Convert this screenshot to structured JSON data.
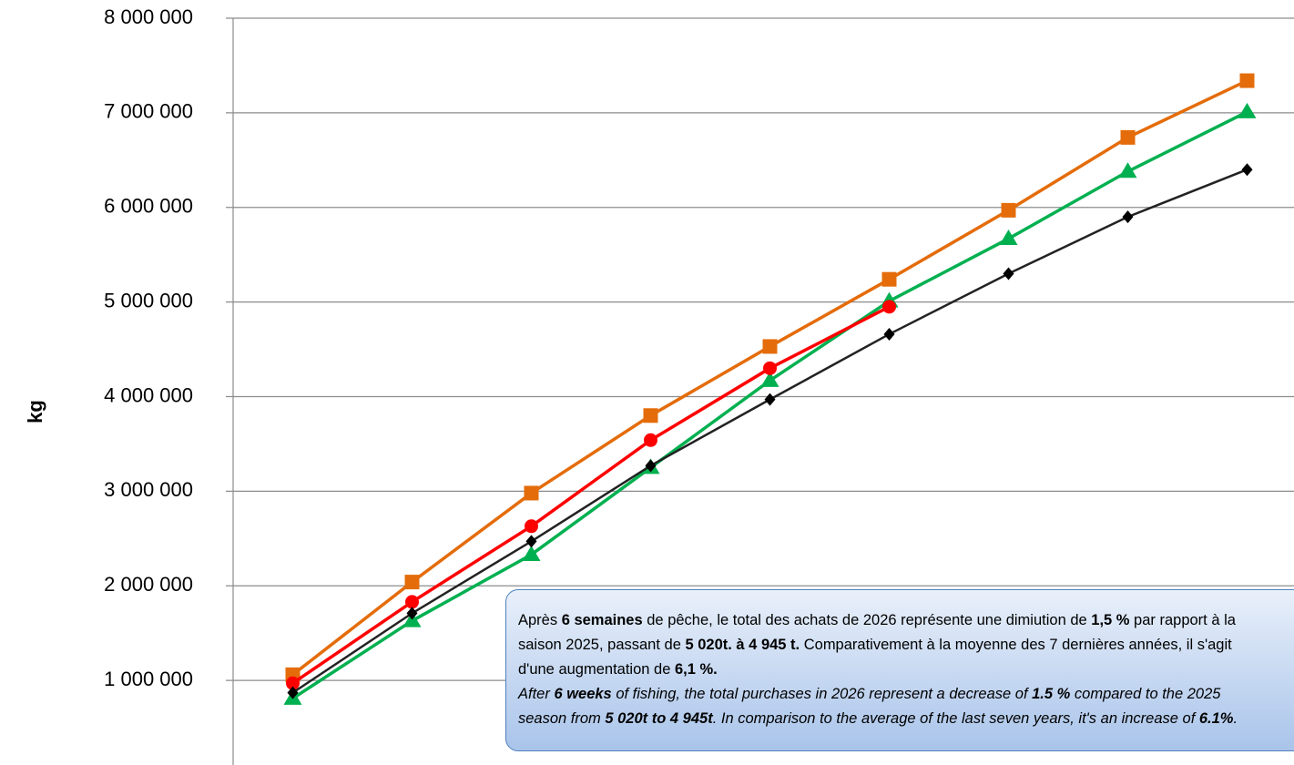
{
  "chart_data": {
    "type": "line",
    "y_label": "kg",
    "categories": [
      null,
      null,
      null,
      null,
      null,
      null,
      null,
      null,
      null
    ],
    "series": [
      {
        "color": "#e46c0a",
        "marker": "square",
        "values": [
          1060000,
          2040000,
          2980000,
          3800000,
          4530000,
          5240000,
          5970000,
          6740000,
          7340000
        ]
      },
      {
        "color": "#00b050",
        "marker": "triangle",
        "values": [
          810000,
          1630000,
          2330000,
          3250000,
          4170000,
          5010000,
          5670000,
          6380000,
          7010000
        ]
      },
      {
        "color": "#ff0000",
        "marker": "circle",
        "values": [
          970000,
          1830000,
          2630000,
          3540000,
          4300000,
          4950000,
          null,
          null,
          null
        ]
      },
      {
        "color": "#000000",
        "marker": "diamond",
        "values": [
          870000,
          1710000,
          2470000,
          3270000,
          3970000,
          4660000,
          5300000,
          5900000,
          6400000
        ]
      }
    ],
    "ylim": [
      0,
      8000000
    ],
    "yticks": [
      {
        "value": 1000000,
        "label": "1 000 000"
      },
      {
        "value": 2000000,
        "label": "2 000 000"
      },
      {
        "value": 3000000,
        "label": "3 000 000"
      },
      {
        "value": 4000000,
        "label": "4 000 000"
      },
      {
        "value": 5000000,
        "label": "5 000 000"
      },
      {
        "value": 6000000,
        "label": "6 000 000"
      },
      {
        "value": 7000000,
        "label": "7 000 000"
      },
      {
        "value": 8000000,
        "label": "8 000 000"
      }
    ],
    "grid": true,
    "annotation": {
      "fr": [
        {
          "text": "Après ",
          "bold": false
        },
        {
          "text": "6 semaines",
          "bold": true
        },
        {
          "text": " de pêche, le total des achats de 2026 représente une dimiution de ",
          "bold": false
        },
        {
          "text": "1,5 %",
          "bold": true
        },
        {
          "text": " par rapport à la saison 2025, passant de ",
          "bold": false
        },
        {
          "text": "5 020t. à 4 945 t.",
          "bold": true
        },
        {
          "text": " Comparativement à la moyenne des 7 dernières années, il s'agit d'une augmentation de ",
          "bold": false
        },
        {
          "text": "6,1 %.",
          "bold": true
        }
      ],
      "en": [
        {
          "text": "After ",
          "bold": false
        },
        {
          "text": "6 weeks",
          "bold": true
        },
        {
          "text": " of fishing, the total purchases in 2026 represent a decrease of ",
          "bold": false
        },
        {
          "text": "1.5 %",
          "bold": true
        },
        {
          "text": " compared to the 2025 season from ",
          "bold": false
        },
        {
          "text": "5 020t to 4 945t",
          "bold": true
        },
        {
          "text": ". In comparison to the average of the last seven years, it's an increase  of ",
          "bold": false
        },
        {
          "text": "6.1%",
          "bold": true
        },
        {
          "text": ".",
          "bold": false
        }
      ]
    }
  }
}
